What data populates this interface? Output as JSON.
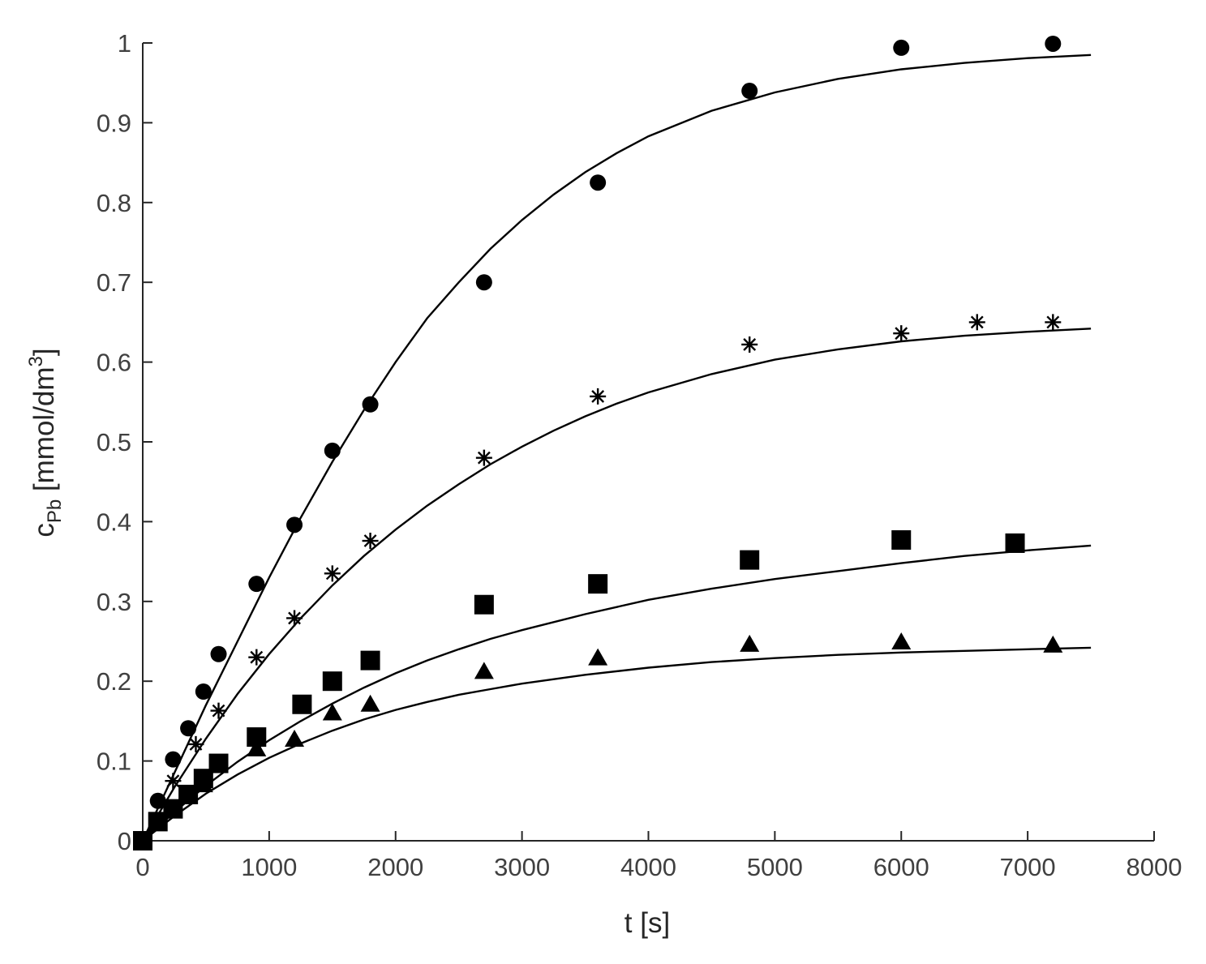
{
  "chart_data": {
    "type": "scatter",
    "title": "",
    "xlabel": "t [s]",
    "ylabel": {
      "main": "c",
      "subscript": "Pb",
      "unit_pre": " [mmol/dm",
      "superscript": "3",
      "unit_post": "]"
    },
    "xlim": [
      0,
      8000
    ],
    "ylim": [
      0,
      1
    ],
    "x_ticks": [
      "0",
      "1000",
      "2000",
      "3000",
      "4000",
      "5000",
      "6000",
      "7000",
      "8000"
    ],
    "y_ticks": [
      "0",
      "0.1",
      "0.2",
      "0.3",
      "0.4",
      "0.5",
      "0.6",
      "0.7",
      "0.8",
      "0.9",
      "1"
    ],
    "grid": false,
    "legend": "none",
    "series": [
      {
        "marker": "circle",
        "points": [
          [
            0,
            0
          ],
          [
            120,
            0.05
          ],
          [
            240,
            0.102
          ],
          [
            360,
            0.141
          ],
          [
            480,
            0.187
          ],
          [
            600,
            0.234
          ],
          [
            900,
            0.322
          ],
          [
            1200,
            0.396
          ],
          [
            1500,
            0.489
          ],
          [
            1800,
            0.547
          ],
          [
            2700,
            0.7
          ],
          [
            3600,
            0.825
          ],
          [
            4800,
            0.94
          ],
          [
            6000,
            0.994
          ],
          [
            7200,
            0.999
          ]
        ],
        "fit": [
          [
            0,
            0
          ],
          [
            250,
            0.085
          ],
          [
            500,
            0.17
          ],
          [
            750,
            0.25
          ],
          [
            1000,
            0.33
          ],
          [
            1250,
            0.405
          ],
          [
            1500,
            0.475
          ],
          [
            1750,
            0.54
          ],
          [
            2000,
            0.6
          ],
          [
            2250,
            0.655
          ],
          [
            2500,
            0.7
          ],
          [
            2750,
            0.742
          ],
          [
            3000,
            0.778
          ],
          [
            3250,
            0.81
          ],
          [
            3500,
            0.838
          ],
          [
            3750,
            0.862
          ],
          [
            4000,
            0.883
          ],
          [
            4500,
            0.915
          ],
          [
            5000,
            0.938
          ],
          [
            5500,
            0.955
          ],
          [
            6000,
            0.967
          ],
          [
            6500,
            0.975
          ],
          [
            7000,
            0.981
          ],
          [
            7500,
            0.985
          ]
        ]
      },
      {
        "marker": "star",
        "points": [
          [
            0,
            0
          ],
          [
            240,
            0.075
          ],
          [
            420,
            0.121
          ],
          [
            600,
            0.163
          ],
          [
            900,
            0.23
          ],
          [
            1200,
            0.279
          ],
          [
            1500,
            0.335
          ],
          [
            1800,
            0.376
          ],
          [
            2700,
            0.48
          ],
          [
            3600,
            0.557
          ],
          [
            4800,
            0.622
          ],
          [
            6000,
            0.636
          ],
          [
            6600,
            0.65
          ],
          [
            7200,
            0.65
          ]
        ],
        "fit": [
          [
            0,
            0
          ],
          [
            250,
            0.067
          ],
          [
            500,
            0.128
          ],
          [
            750,
            0.184
          ],
          [
            1000,
            0.234
          ],
          [
            1250,
            0.279
          ],
          [
            1500,
            0.32
          ],
          [
            1750,
            0.357
          ],
          [
            2000,
            0.39
          ],
          [
            2250,
            0.42
          ],
          [
            2500,
            0.447
          ],
          [
            2750,
            0.472
          ],
          [
            3000,
            0.494
          ],
          [
            3250,
            0.514
          ],
          [
            3500,
            0.532
          ],
          [
            3750,
            0.548
          ],
          [
            4000,
            0.562
          ],
          [
            4500,
            0.585
          ],
          [
            5000,
            0.603
          ],
          [
            5500,
            0.616
          ],
          [
            6000,
            0.626
          ],
          [
            6500,
            0.633
          ],
          [
            7000,
            0.638
          ],
          [
            7500,
            0.642
          ]
        ]
      },
      {
        "marker": "square",
        "points": [
          [
            0,
            0
          ],
          [
            120,
            0.024
          ],
          [
            240,
            0.04
          ],
          [
            360,
            0.058
          ],
          [
            480,
            0.078
          ],
          [
            600,
            0.097
          ],
          [
            900,
            0.13
          ],
          [
            1260,
            0.171
          ],
          [
            1500,
            0.2
          ],
          [
            1800,
            0.226
          ],
          [
            2700,
            0.296
          ],
          [
            3600,
            0.322
          ],
          [
            4800,
            0.352
          ],
          [
            6000,
            0.377
          ],
          [
            6900,
            0.373
          ]
        ],
        "fit": [
          [
            0,
            0
          ],
          [
            250,
            0.036
          ],
          [
            500,
            0.069
          ],
          [
            750,
            0.099
          ],
          [
            1000,
            0.126
          ],
          [
            1250,
            0.15
          ],
          [
            1500,
            0.172
          ],
          [
            1750,
            0.192
          ],
          [
            2000,
            0.21
          ],
          [
            2250,
            0.226
          ],
          [
            2500,
            0.24
          ],
          [
            2750,
            0.253
          ],
          [
            3000,
            0.264
          ],
          [
            3500,
            0.284
          ],
          [
            4000,
            0.302
          ],
          [
            4500,
            0.316
          ],
          [
            5000,
            0.328
          ],
          [
            5500,
            0.338
          ],
          [
            6000,
            0.348
          ],
          [
            6500,
            0.357
          ],
          [
            7000,
            0.364
          ],
          [
            7500,
            0.37
          ]
        ]
      },
      {
        "marker": "triangle",
        "points": [
          [
            0,
            0
          ],
          [
            360,
            0.055
          ],
          [
            480,
            0.07
          ],
          [
            900,
            0.115
          ],
          [
            1200,
            0.127
          ],
          [
            1500,
            0.16
          ],
          [
            1800,
            0.171
          ],
          [
            2700,
            0.212
          ],
          [
            3600,
            0.229
          ],
          [
            4800,
            0.246
          ],
          [
            6000,
            0.249
          ],
          [
            7200,
            0.245
          ]
        ],
        "fit": [
          [
            0,
            0
          ],
          [
            250,
            0.031
          ],
          [
            500,
            0.059
          ],
          [
            750,
            0.083
          ],
          [
            1000,
            0.104
          ],
          [
            1250,
            0.122
          ],
          [
            1500,
            0.138
          ],
          [
            1750,
            0.152
          ],
          [
            2000,
            0.164
          ],
          [
            2250,
            0.174
          ],
          [
            2500,
            0.183
          ],
          [
            2750,
            0.19
          ],
          [
            3000,
            0.197
          ],
          [
            3500,
            0.208
          ],
          [
            4000,
            0.217
          ],
          [
            4500,
            0.224
          ],
          [
            5000,
            0.229
          ],
          [
            5500,
            0.233
          ],
          [
            6000,
            0.236
          ],
          [
            6500,
            0.238
          ],
          [
            7000,
            0.24
          ],
          [
            7500,
            0.242
          ]
        ]
      }
    ]
  }
}
